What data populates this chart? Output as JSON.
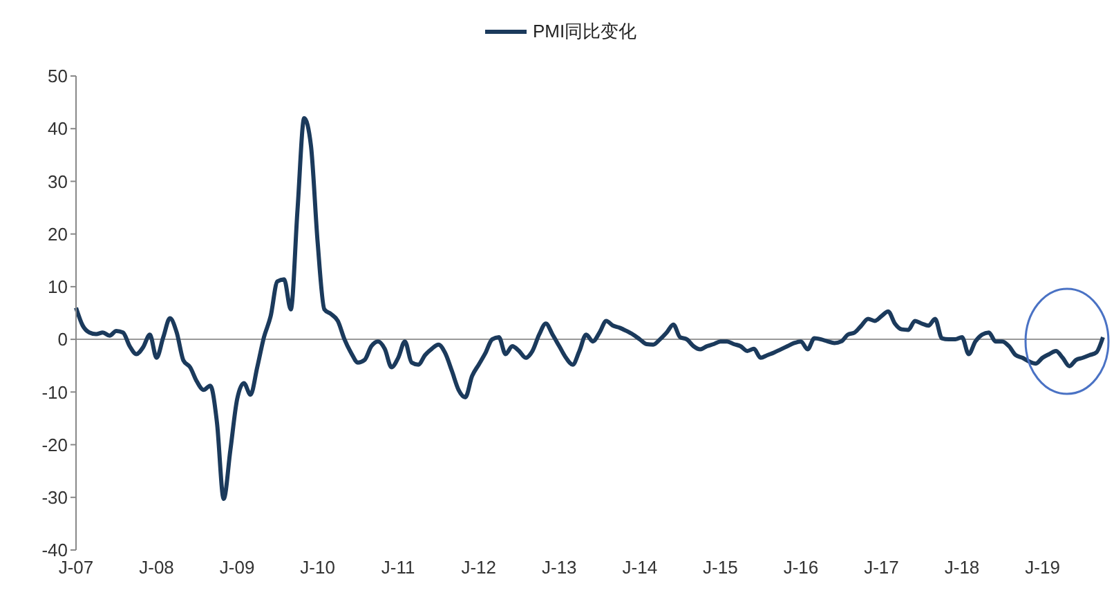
{
  "chart_data": {
    "type": "line",
    "legend": "top",
    "marker": "none",
    "line_style": "solid",
    "categories": [
      "J-07",
      null,
      null,
      null,
      null,
      null,
      null,
      null,
      null,
      null,
      null,
      null,
      "J-08",
      null,
      null,
      null,
      null,
      null,
      null,
      null,
      null,
      null,
      null,
      null,
      "J-09",
      null,
      null,
      null,
      null,
      null,
      null,
      null,
      null,
      null,
      null,
      null,
      "J-10",
      null,
      null,
      null,
      null,
      null,
      null,
      null,
      null,
      null,
      null,
      null,
      "J-11",
      null,
      null,
      null,
      null,
      null,
      null,
      null,
      null,
      null,
      null,
      null,
      "J-12",
      null,
      null,
      null,
      null,
      null,
      null,
      null,
      null,
      null,
      null,
      null,
      "J-13",
      null,
      null,
      null,
      null,
      null,
      null,
      null,
      null,
      null,
      null,
      null,
      "J-14",
      null,
      null,
      null,
      null,
      null,
      null,
      null,
      null,
      null,
      null,
      null,
      "J-15",
      null,
      null,
      null,
      null,
      null,
      null,
      null,
      null,
      null,
      null,
      null,
      "J-16",
      null,
      null,
      null,
      null,
      null,
      null,
      null,
      null,
      null,
      null,
      null,
      "J-17",
      null,
      null,
      null,
      null,
      null,
      null,
      null,
      null,
      null,
      null,
      null,
      "J-18",
      null,
      null,
      null,
      null,
      null,
      null,
      null,
      null,
      null,
      null,
      null,
      "J-19",
      null,
      null,
      null,
      null,
      null,
      null,
      null,
      null,
      null
    ],
    "series": [
      {
        "name": "PMI同比变化",
        "color": "#1b3a5c",
        "values": [
          6,
          2.6,
          1.3,
          1,
          1.3,
          0.7,
          1.6,
          1.3,
          -1.3,
          -2.8,
          -1.5,
          0.9,
          -3.5,
          0.4,
          4,
          1.3,
          -4,
          -5.3,
          -8,
          -9.6,
          -8.8,
          -15.8,
          -30.3,
          -21,
          -11.4,
          -8.3,
          -10.5,
          -5.3,
          0.4,
          4.4,
          11,
          11.4,
          5.7,
          24.6,
          42,
          36.8,
          18.4,
          5.7,
          4.8,
          3.5,
          0,
          -2.6,
          -4.4,
          -3.9,
          -1.3,
          -0.4,
          -1.8,
          -5.3,
          -3.5,
          -0.4,
          -4.4,
          -4.8,
          -3,
          -1.8,
          -1,
          -2.6,
          -6,
          -9.6,
          -11,
          -7,
          -4.8,
          -2.6,
          0,
          0.4,
          -2.8,
          -1.3,
          -2.2,
          -3.5,
          -2.2,
          0.9,
          3,
          0.9,
          -1.3,
          -3.5,
          -4.8,
          -2.2,
          0.9,
          -0.4,
          1.3,
          3.5,
          2.6,
          2.2,
          1.6,
          0.9,
          0,
          -0.9,
          -1,
          0,
          1.3,
          2.8,
          0.4,
          0,
          -1.3,
          -1.9,
          -1.3,
          -0.9,
          -0.4,
          -0.4,
          -0.9,
          -1.3,
          -2.2,
          -1.8,
          -3.5,
          -3,
          -2.5,
          -1.9,
          -1.3,
          -0.7,
          -0.4,
          -1.9,
          0.2,
          0,
          -0.4,
          -0.7,
          -0.4,
          0.9,
          1.3,
          2.6,
          3.9,
          3.5,
          4.4,
          5.3,
          3,
          1.9,
          1.8,
          3.5,
          3,
          2.6,
          3.9,
          0.2,
          0,
          0,
          0.4,
          -2.8,
          -0.4,
          0.9,
          1.3,
          -0.4,
          -0.4,
          -1.3,
          -3,
          -3.5,
          -4.2,
          -4.6,
          -3.5,
          -2.8,
          -2.2,
          -3.5,
          -5.1,
          -3.9,
          -3.5,
          -3,
          -2.5,
          0.4
        ]
      }
    ],
    "ylim": [
      -40,
      50
    ],
    "yticks": [
      -40,
      -30,
      -20,
      -10,
      0,
      10,
      20,
      30,
      40,
      50
    ],
    "ref_lines": [
      {
        "axis": "y",
        "value": 0,
        "color": "#999999"
      }
    ]
  }
}
